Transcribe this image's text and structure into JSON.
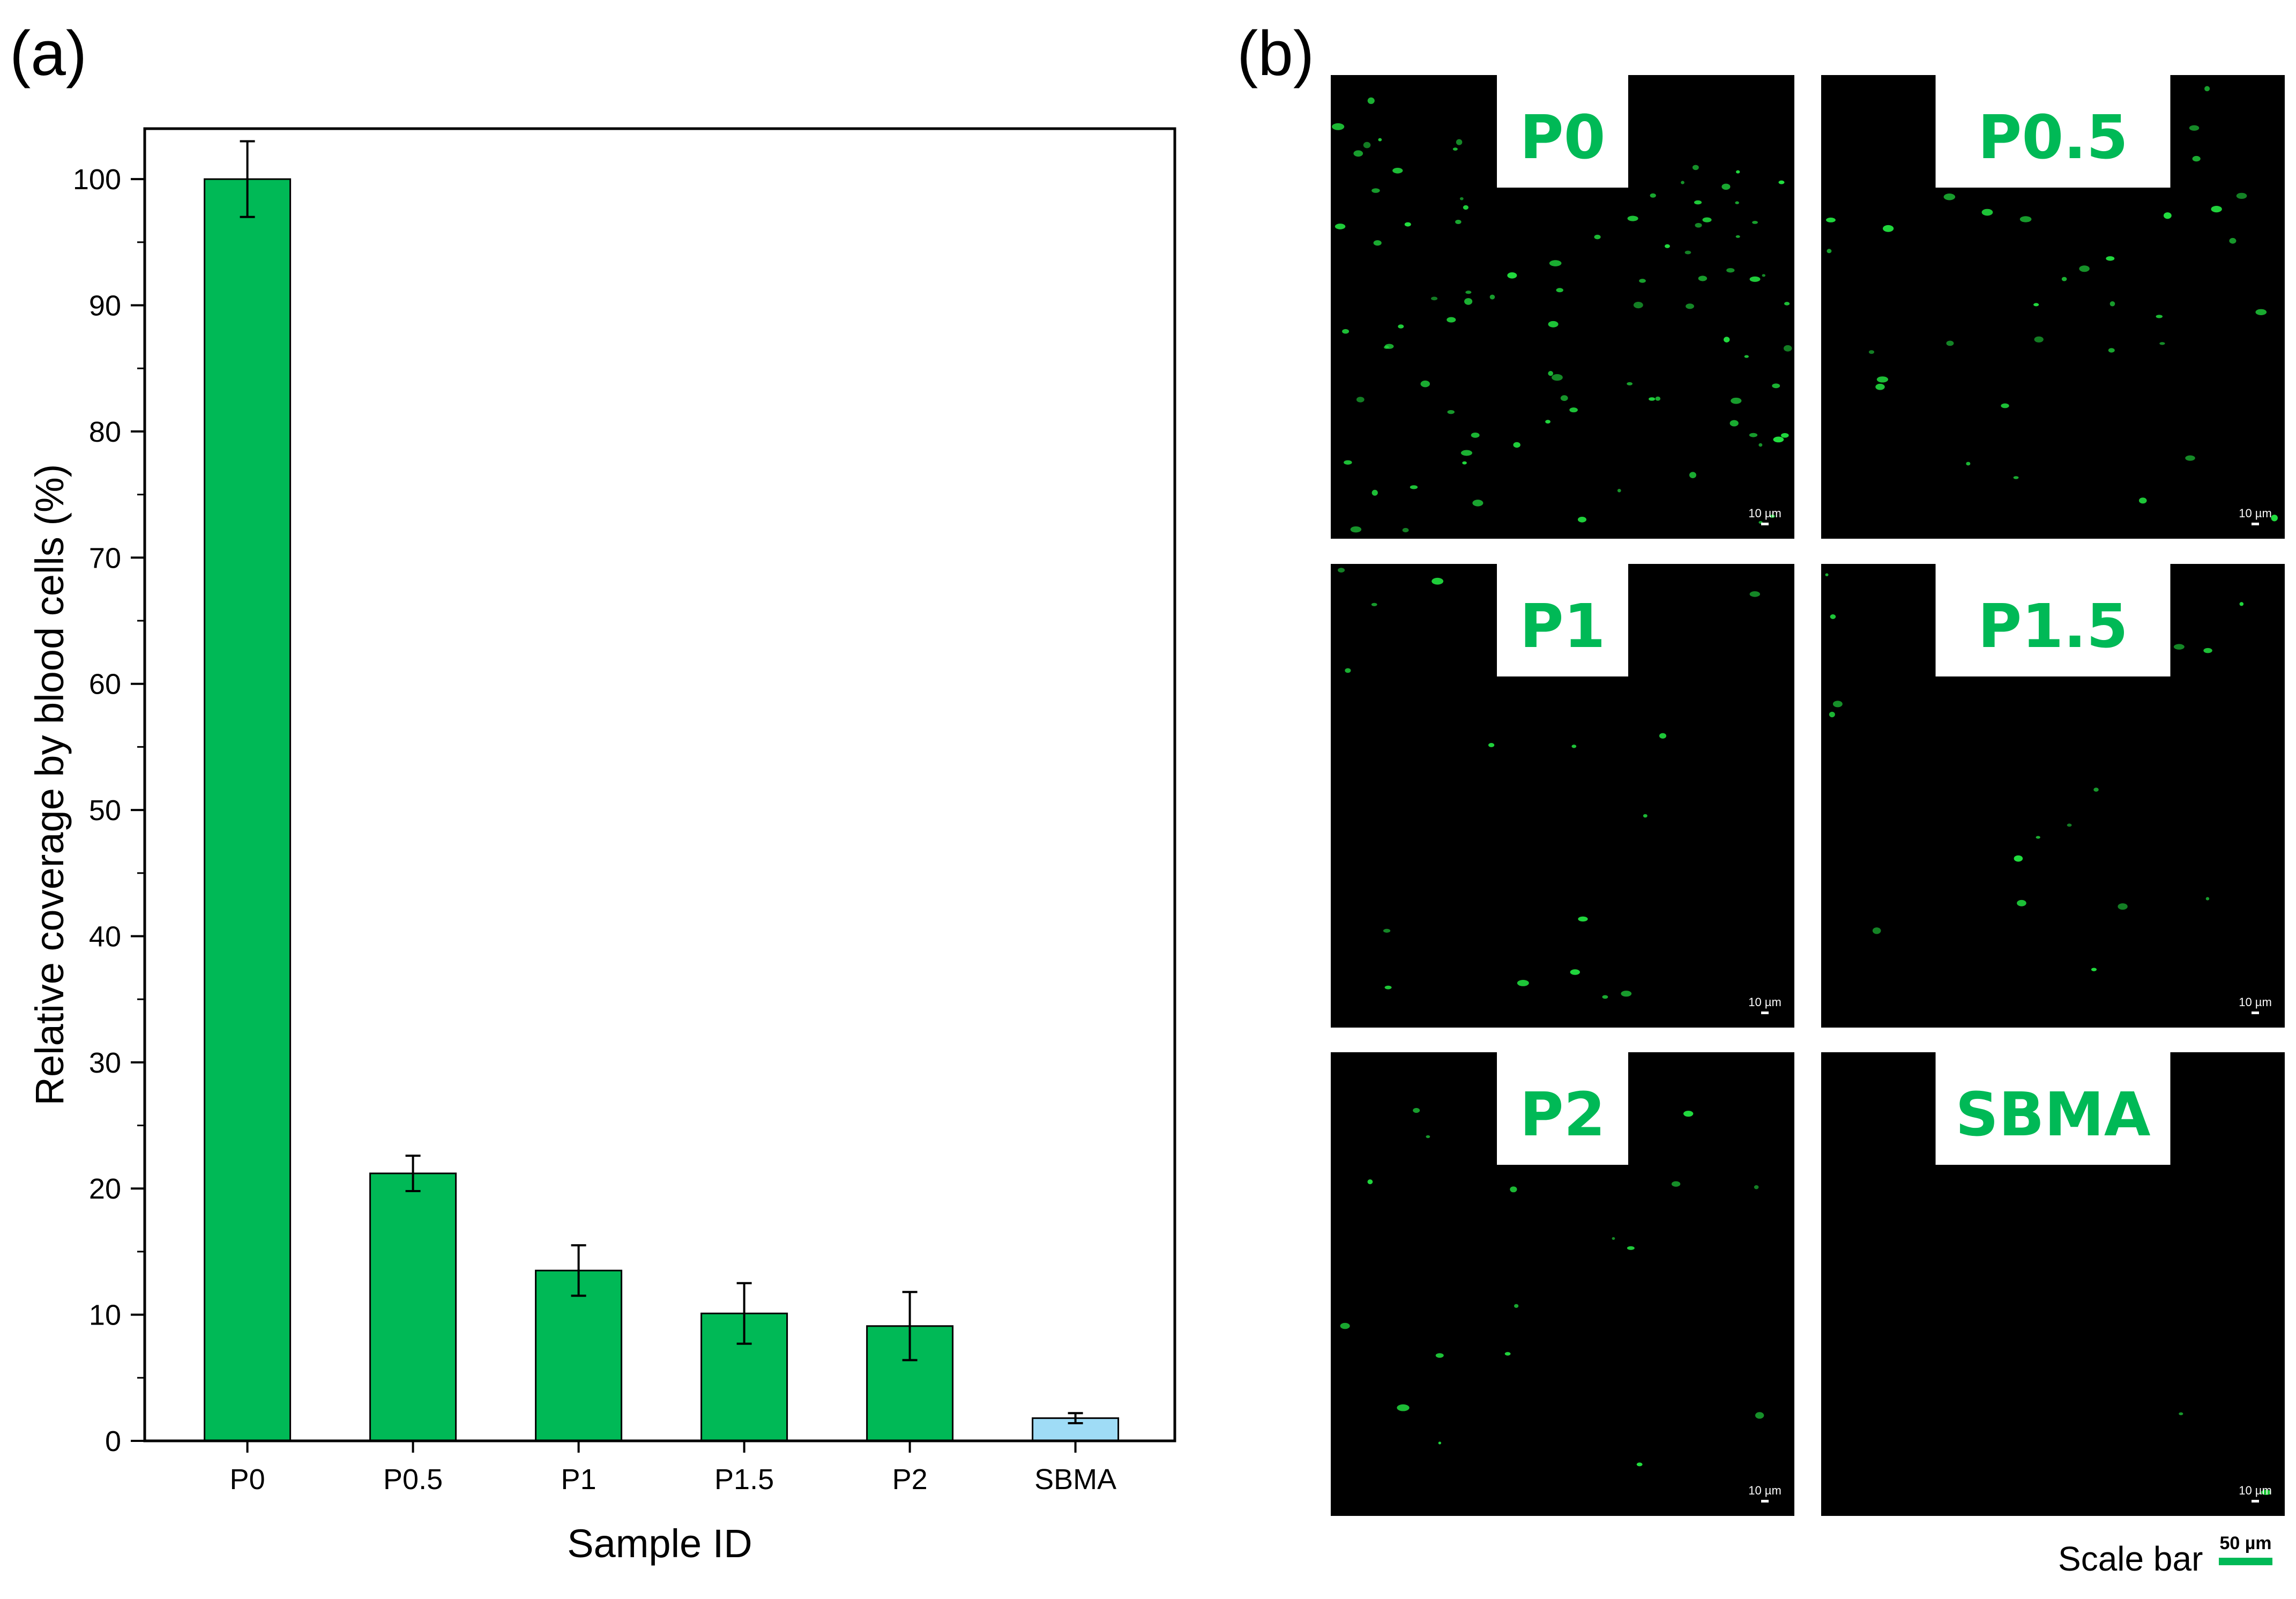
{
  "panel_a": {
    "label": "(a)"
  },
  "panel_b": {
    "label": "(b)"
  },
  "chart_data": {
    "type": "bar",
    "xlabel": "Sample ID",
    "ylabel": "Relative coverage by blood cells (%)",
    "categories": [
      "P0",
      "P0.5",
      "P1",
      "P1.5",
      "P2",
      "SBMA"
    ],
    "values": [
      100,
      21.2,
      13.5,
      10.1,
      9.1,
      1.8
    ],
    "errors": [
      3.0,
      1.4,
      2.0,
      2.4,
      2.7,
      0.4
    ],
    "bar_colors": [
      "#00b956",
      "#00b956",
      "#00b956",
      "#00b956",
      "#00b956",
      "#9fdcf6"
    ],
    "ylim": [
      0,
      104
    ],
    "yticks": [
      0,
      10,
      20,
      30,
      40,
      50,
      60,
      70,
      80,
      90,
      100
    ],
    "grid": false,
    "legend": "none"
  },
  "images": {
    "tiles": [
      {
        "label": "P0",
        "scale_text": "10 µm",
        "density": "high"
      },
      {
        "label": "P0.5",
        "scale_text": "10 µm",
        "density": "medium"
      },
      {
        "label": "P1",
        "scale_text": "10 µm",
        "density": "low"
      },
      {
        "label": "P1.5",
        "scale_text": "10 µm",
        "density": "low"
      },
      {
        "label": "P2",
        "scale_text": "10 µm",
        "density": "low"
      },
      {
        "label": "SBMA",
        "scale_text": "10 µm",
        "density": "none"
      }
    ],
    "scale_bar_label": "Scale bar",
    "scale_bar_value": "50 µm"
  },
  "colors": {
    "fluorescence_green": "#00b956",
    "axis": "#000000",
    "tile_bg": "#000000"
  }
}
